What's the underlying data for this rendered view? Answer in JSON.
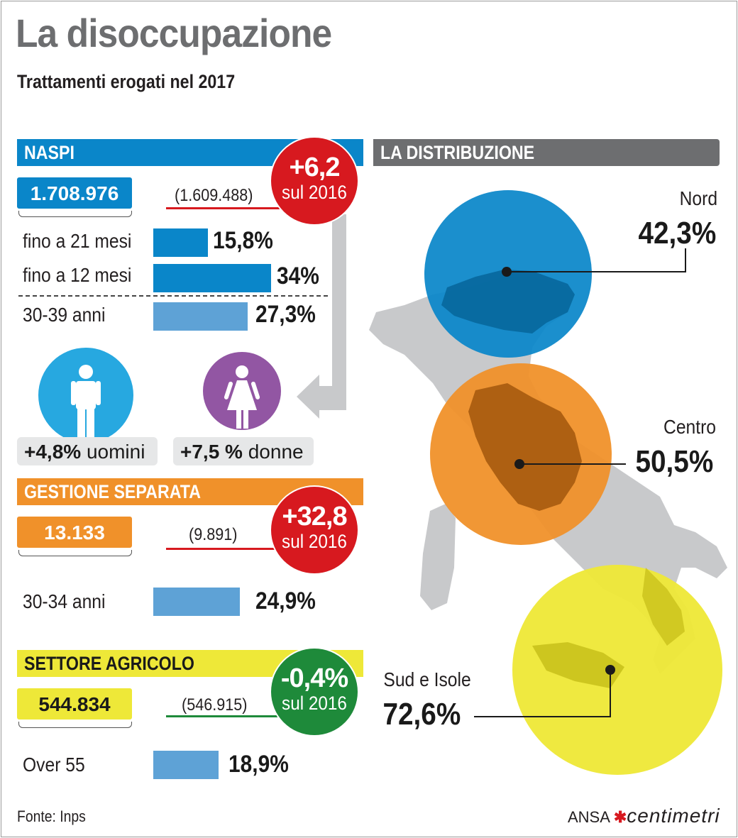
{
  "title": "La disoccupazione",
  "subtitle": "Trattamenti erogati nel 2017",
  "colors": {
    "naspi": "#0a86c9",
    "gestione": "#f0912a",
    "agricolo": "#eee838",
    "bar": "#5ea2d6",
    "up": "#d7191f",
    "down": "#1e8a3a",
    "distribuzione": "#6d6e70",
    "man": "#27a8e0",
    "woman": "#9256a3"
  },
  "naspi": {
    "header": "NASPI",
    "total": "1.708.976",
    "previous": "(1.609.488)",
    "delta": "+6,2",
    "delta_label": "sul 2016",
    "rows": [
      {
        "label": "fino a 21 mesi",
        "value": 15.8,
        "display": "15,8%"
      },
      {
        "label": "fino a 12 mesi",
        "value": 34,
        "display": "34%"
      },
      {
        "label": "30-39 anni",
        "value": 27.3,
        "display": "27,3%"
      }
    ],
    "men": {
      "value": "+4,8%",
      "label": "uomini",
      "icon": "man-icon"
    },
    "women": {
      "value": "+7,5 %",
      "label": "donne",
      "icon": "woman-icon"
    }
  },
  "gestione": {
    "header": "GESTIONE SEPARATA",
    "total": "13.133",
    "previous": "(9.891)",
    "delta": "+32,8",
    "delta_label": "sul 2016",
    "rows": [
      {
        "label": "30-34 anni",
        "value": 24.9,
        "display": "24,9%"
      }
    ]
  },
  "agricolo": {
    "header": "SETTORE AGRICOLO",
    "total": "544.834",
    "previous": "(546.915)",
    "delta": "-0,4%",
    "delta_label": "sul 2016",
    "rows": [
      {
        "label": "Over 55",
        "value": 18.9,
        "display": "18,9%"
      }
    ]
  },
  "distribuzione": {
    "header": "LA DISTRIBUZIONE",
    "regions": [
      {
        "name": "Nord",
        "value": "42,3%",
        "color": "#0a86c9"
      },
      {
        "name": "Centro",
        "value": "50,5%",
        "color": "#f0912a"
      },
      {
        "name": "Sud e Isole",
        "value": "72,6%",
        "color": "#eee838"
      }
    ]
  },
  "footer": {
    "source": "Fonte: Inps",
    "logo_ansa": "ANSA",
    "logo_brand": "centimetri"
  }
}
